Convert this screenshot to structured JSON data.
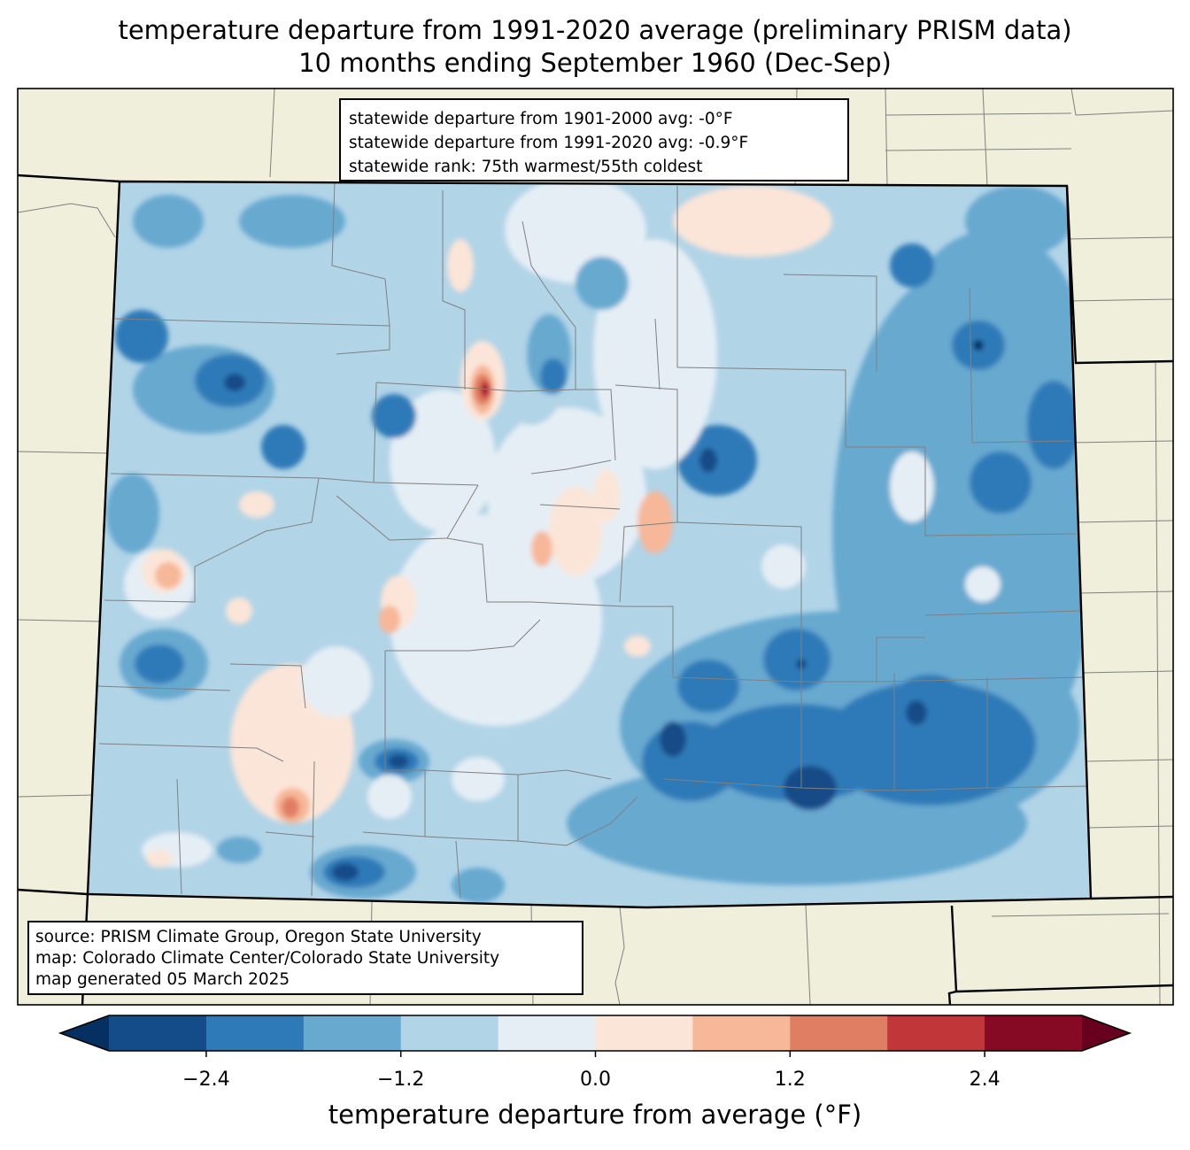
{
  "title": {
    "line1": "temperature departure from 1991-2020 average (preliminary PRISM data)",
    "line2": "10 months ending September 1960 (Dec-Sep)"
  },
  "stats": {
    "line1": "statewide departure from 1901-2000 avg: -0°F",
    "line2": "statewide departure from 1991-2020 avg: -0.9°F",
    "line3": "statewide rank: 75th warmest/55th coldest"
  },
  "source": {
    "line1": "source: PRISM Climate Group, Oregon State University",
    "line2": "map: Colorado Climate Center/Colorado State University",
    "line3": "map generated 05 March 2025"
  },
  "colorbar": {
    "label": "temperature departure from average (°F)",
    "ticks": [
      "−2.4",
      "−1.2",
      "0.0",
      "1.2",
      "2.4"
    ],
    "tick_values": [
      -2.4,
      -1.2,
      0.0,
      1.2,
      2.4
    ],
    "range": [
      -3.0,
      3.0
    ],
    "step": 0.6,
    "extend": "both",
    "colors": [
      "#053061",
      "#134c88",
      "#2e7ab8",
      "#68a9d0",
      "#b1d4e7",
      "#e5eef5",
      "#fbe5d8",
      "#f7b799",
      "#e07e64",
      "#c13639",
      "#870a24",
      "#67001f"
    ]
  },
  "map_colors": {
    "land": "#efefdc",
    "state_border": "#000000",
    "county_border": "#808080"
  }
}
